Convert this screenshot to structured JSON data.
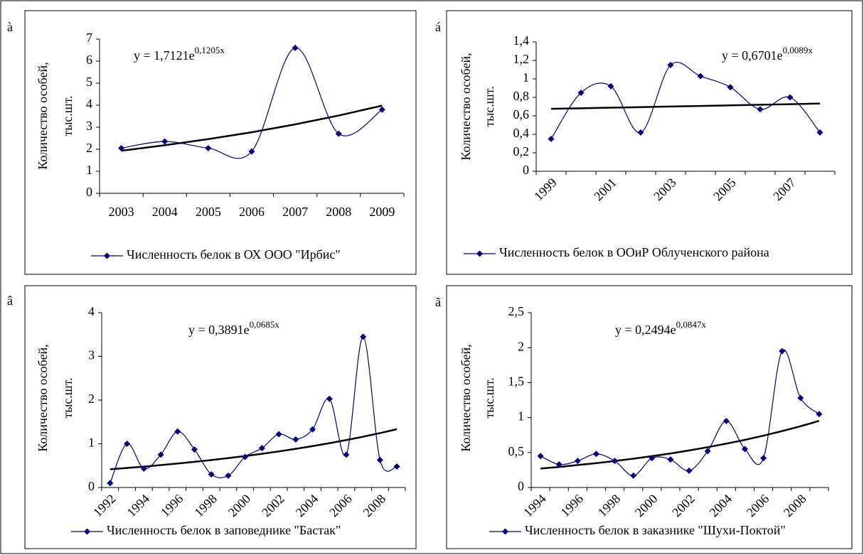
{
  "chart_data": [
    {
      "type": "line",
      "panel_label": "à",
      "annotation": {
        "text": "y = 1,7121e",
        "superscript": "0,1205x"
      },
      "y_label": [
        "Количество особей,",
        "тыс.шт."
      ],
      "categories": [
        "2003",
        "2004",
        "2005",
        "2006",
        "2007",
        "2008",
        "2009"
      ],
      "series": [
        {
          "name": "Численность белок в ОХ ООО \"Ирбис\"",
          "color": "#000080",
          "marker": "diamond",
          "smooth": true,
          "values": [
            2.05,
            2.35,
            2.05,
            1.9,
            6.6,
            2.7,
            3.8
          ]
        }
      ],
      "trendline": {
        "color": "#000000",
        "values": [
          1.93,
          2.18,
          2.46,
          2.77,
          3.13,
          3.53,
          3.98
        ]
      },
      "ylim": [
        0,
        7
      ],
      "yticks": [
        0,
        1,
        2,
        3,
        4,
        5,
        6,
        7
      ]
    },
    {
      "type": "line",
      "panel_label": "á",
      "annotation": {
        "text": "y = 0,6701e",
        "superscript": "0,0089x"
      },
      "y_label": [
        "Количество особей,",
        "тыс.шт."
      ],
      "categories": [
        "1999",
        null,
        "2001",
        null,
        "2003",
        null,
        "2005",
        null,
        "2007",
        null
      ],
      "series": [
        {
          "name": "Численность белок в ООиР Облученского района",
          "color": "#000080",
          "marker": "diamond",
          "smooth": true,
          "values": [
            0.35,
            0.85,
            0.92,
            0.42,
            1.15,
            1.03,
            0.91,
            0.67,
            0.8,
            0.42
          ]
        }
      ],
      "trendline": {
        "color": "#000000",
        "values": [
          0.676,
          0.682,
          0.688,
          0.694,
          0.701,
          0.707,
          0.713,
          0.72,
          0.726,
          0.733
        ]
      },
      "ylim": [
        0,
        1.4
      ],
      "yticks": [
        0,
        {
          "value": 0.2,
          "label": "0,2"
        },
        {
          "value": 0.4,
          "label": "0,4"
        },
        {
          "value": 0.6,
          "label": "0,6"
        },
        {
          "value": 0.8,
          "label": "0,8"
        },
        1,
        {
          "value": 1.2,
          "label": "1,2"
        },
        {
          "value": 1.4,
          "label": "1,4"
        }
      ]
    },
    {
      "type": "line",
      "panel_label": "â",
      "annotation": {
        "text": "y = 0,3891e",
        "superscript": "0,0685x"
      },
      "y_label": [
        "Количество особей,",
        "тыс.шт."
      ],
      "categories": [
        "1992",
        null,
        "1994",
        null,
        "1996",
        null,
        "1998",
        null,
        "2000",
        null,
        "2002",
        null,
        "2004",
        null,
        "2006",
        null,
        "2008",
        null
      ],
      "series": [
        {
          "name": "Численность белок в заповеднике \"Бастак\"",
          "color": "#000080",
          "marker": "diamond",
          "smooth": true,
          "values": [
            0.1,
            1.0,
            0.43,
            0.75,
            1.28,
            0.87,
            0.3,
            0.27,
            0.7,
            0.9,
            1.22,
            1.1,
            1.33,
            2.03,
            0.75,
            3.45,
            0.63,
            0.48
          ]
        }
      ],
      "trendline": {
        "color": "#000000",
        "values": [
          0.417,
          0.447,
          0.478,
          0.512,
          0.548,
          0.587,
          0.628,
          0.673,
          0.72,
          0.771,
          0.826,
          0.884,
          0.947,
          1.014,
          1.086,
          1.162,
          1.245,
          1.333
        ]
      },
      "ylim": [
        0,
        4
      ],
      "yticks": [
        0,
        1,
        2,
        3,
        4
      ]
    },
    {
      "type": "line",
      "panel_label": "ã",
      "annotation": {
        "text": "y = 0,2494e",
        "superscript": "0,0847x"
      },
      "y_label": [
        "Количество особей,",
        "тыс.шт."
      ],
      "categories": [
        "1994",
        null,
        "1996",
        null,
        "1998",
        null,
        "2000",
        null,
        "2002",
        null,
        "2004",
        null,
        "2006",
        null,
        "2008",
        null
      ],
      "series": [
        {
          "name": "Численность белок в заказнике \"Шухи-Поктой\"",
          "color": "#000080",
          "marker": "diamond",
          "smooth": true,
          "values": [
            0.45,
            0.33,
            0.38,
            0.48,
            0.38,
            0.17,
            0.42,
            0.4,
            0.24,
            0.52,
            0.95,
            0.55,
            0.42,
            1.95,
            1.28,
            1.05
          ]
        }
      ],
      "trendline": {
        "color": "#000000",
        "values": [
          0.271,
          0.294,
          0.321,
          0.348,
          0.379,
          0.412,
          0.448,
          0.487,
          0.53,
          0.576,
          0.627,
          0.681,
          0.741,
          0.806,
          0.876,
          0.953
        ]
      },
      "ylim": [
        0,
        2.5
      ],
      "yticks": [
        0,
        {
          "value": 0.5,
          "label": "0,5"
        },
        1,
        {
          "value": 1.5,
          "label": "1,5"
        },
        2,
        {
          "value": 2.5,
          "label": "2,5"
        }
      ]
    }
  ]
}
